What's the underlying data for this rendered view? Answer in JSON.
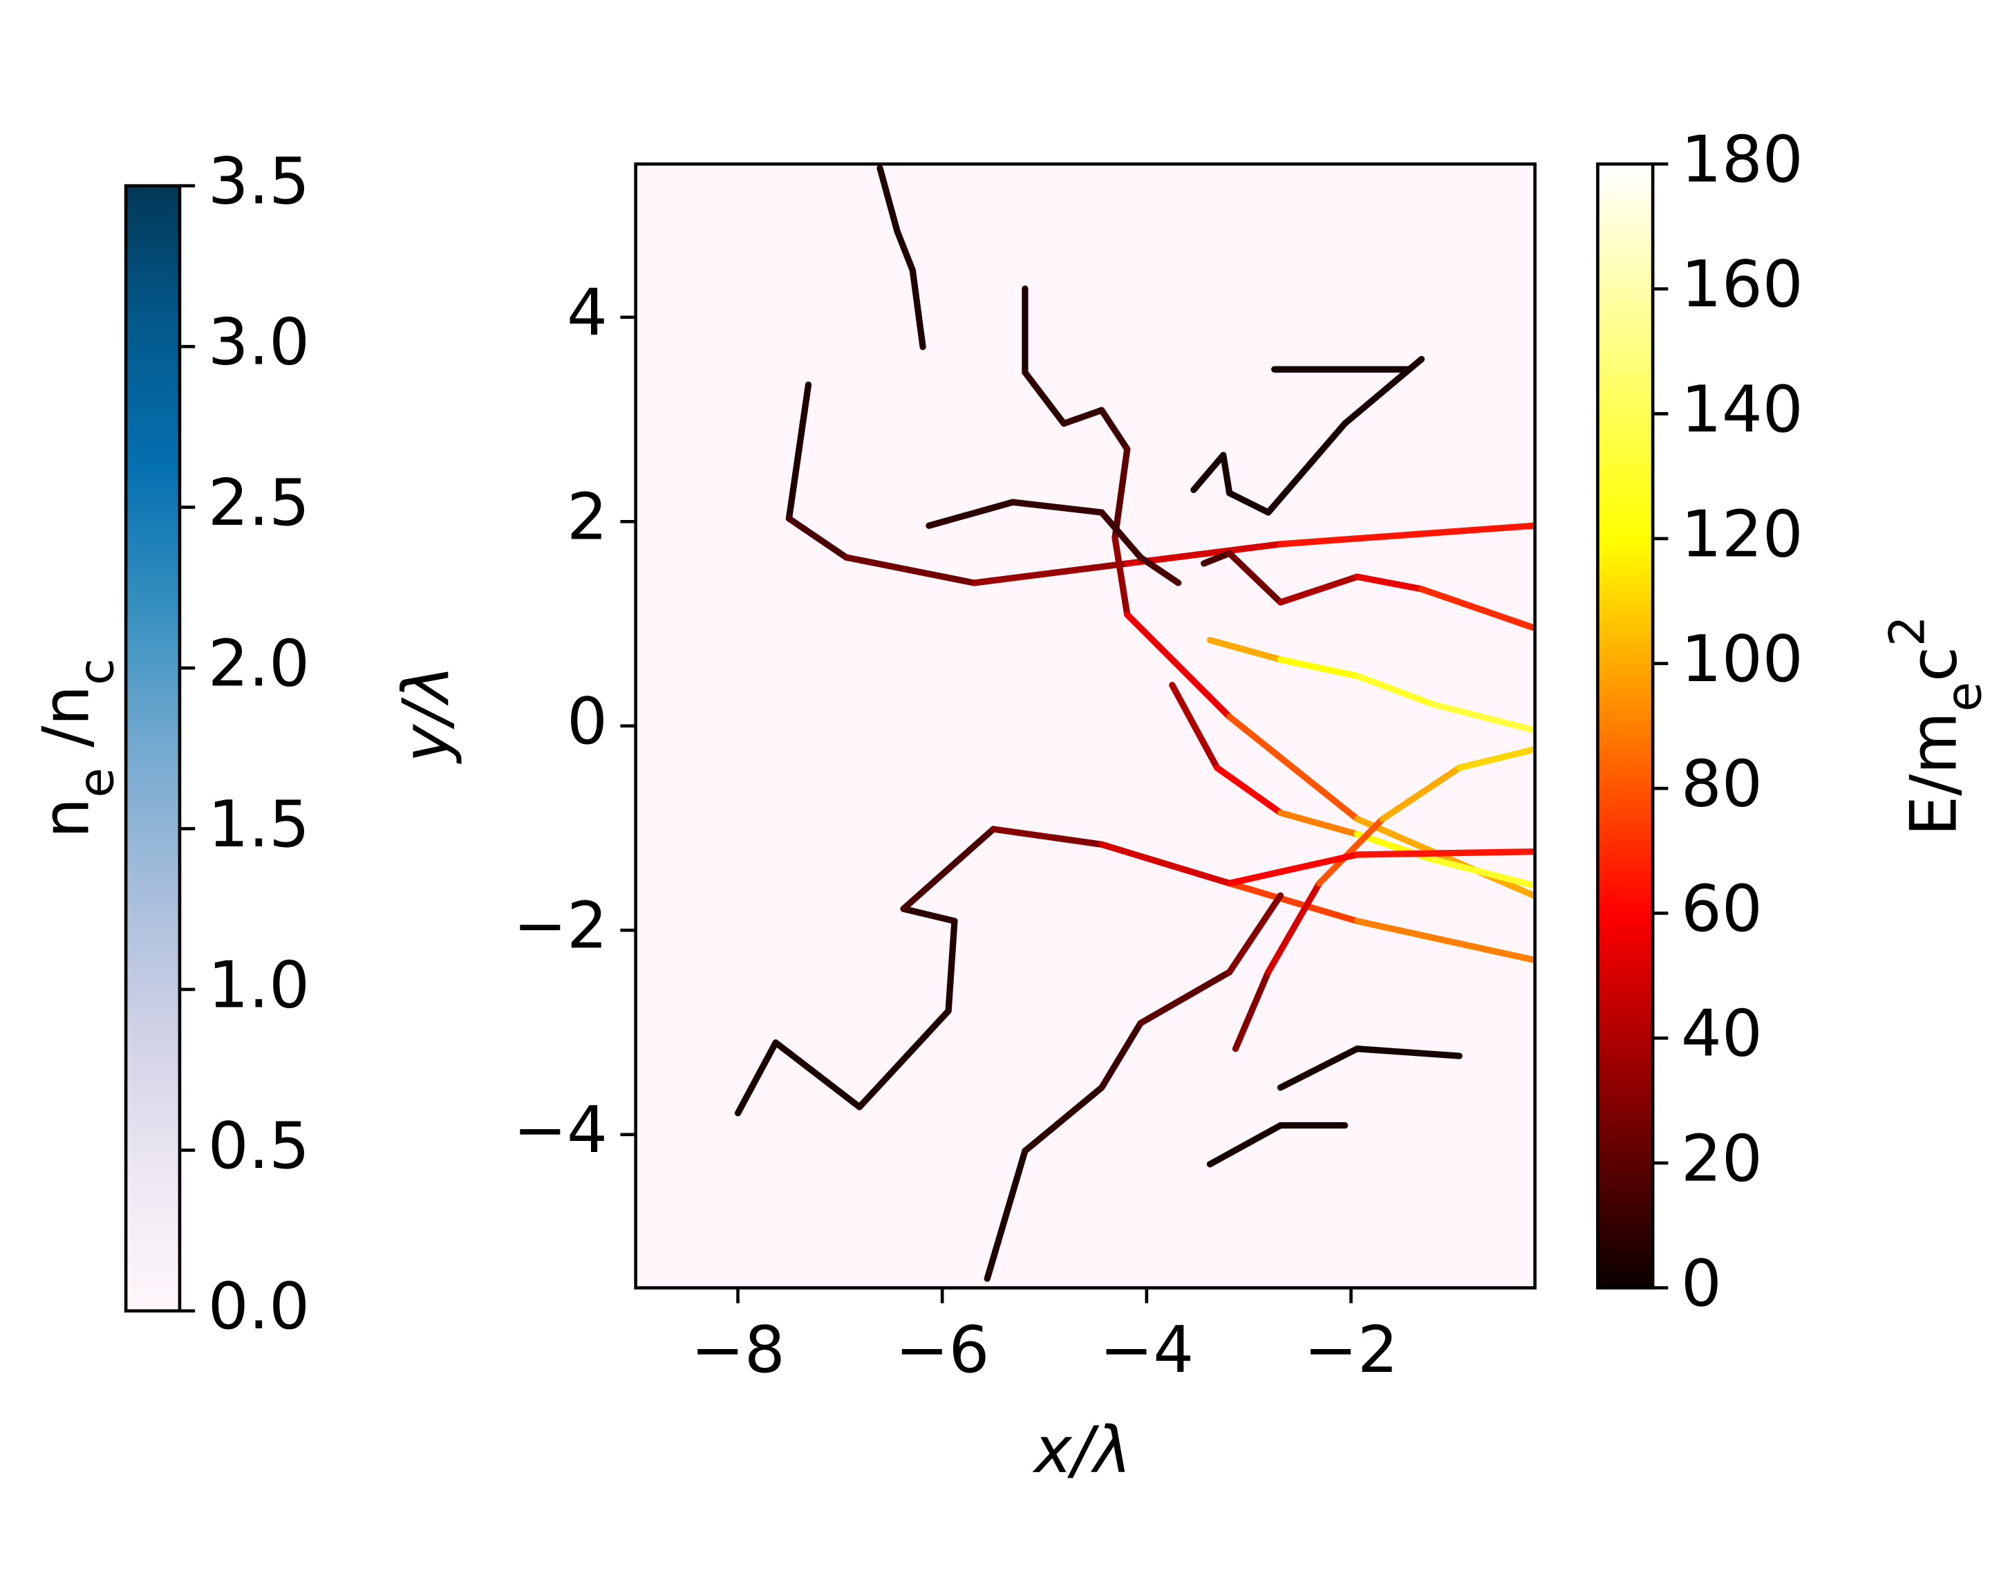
{
  "chart_data": {
    "type": "trajectory",
    "xlabel": "x/λ",
    "ylabel": "y/λ",
    "xlim": [
      -9,
      -0.2
    ],
    "ylim": [
      -5.5,
      5.5
    ],
    "xticks": [
      {
        "value": -8,
        "label": "−8"
      },
      {
        "value": -6,
        "label": "−6"
      },
      {
        "value": -4,
        "label": "−4"
      },
      {
        "value": -2,
        "label": "−2"
      }
    ],
    "yticks": [
      {
        "value": -4,
        "label": "−4"
      },
      {
        "value": -2,
        "label": "−2"
      },
      0,
      2,
      4
    ],
    "density_colorbar": {
      "label": [
        {
          "text": "n"
        },
        {
          "text": "e",
          "shift": "sub"
        },
        {
          "text": " /n"
        },
        {
          "text": "c",
          "shift": "sub"
        }
      ],
      "lim": [
        0,
        3.5
      ],
      "ticks": [
        {
          "value": 0,
          "label": "0.0"
        },
        {
          "value": 0.5,
          "label": "0.5"
        },
        {
          "value": 1,
          "label": "1.0"
        },
        {
          "value": 1.5,
          "label": "1.5"
        },
        {
          "value": 2,
          "label": "2.0"
        },
        {
          "value": 2.5,
          "label": "2.5"
        },
        {
          "value": 3,
          "label": "3.0"
        },
        {
          "value": 3.5,
          "label": "3.5"
        }
      ],
      "colors": [
        "#fff7fb",
        "#ece7f2",
        "#d0d1e6",
        "#a6bddb",
        "#74a9cf",
        "#3690c0",
        "#0570b0",
        "#045a8d",
        "#023858"
      ]
    },
    "energy_colorbar": {
      "label": [
        {
          "text": "E/m"
        },
        {
          "text": "e",
          "shift": "sub"
        },
        {
          "text": "c"
        },
        {
          "text": "2",
          "shift": "super"
        }
      ],
      "lim": [
        0,
        180
      ],
      "ticks": [
        0,
        20,
        40,
        60,
        80,
        100,
        120,
        140,
        160,
        180
      ],
      "colors": [
        "#0b0000",
        "#ff0000",
        "#ffff00",
        "#ffffff"
      ]
    },
    "series": [
      {
        "x": [
          -6.61,
          -6.44,
          -6.29,
          -6.19
        ],
        "y": [
          5.46,
          4.84,
          4.46,
          3.71
        ],
        "energy": [
          5,
          5,
          5,
          5
        ]
      },
      {
        "x": [
          -7.31,
          -7.5,
          -6.94,
          -5.69,
          -4.19,
          -2.69,
          -0.21
        ],
        "y": [
          3.34,
          2.03,
          1.65,
          1.4,
          1.59,
          1.78,
          1.96
        ],
        "energy": [
          5,
          5,
          15,
          25,
          35,
          50,
          65
        ]
      },
      {
        "x": [
          -5.19,
          -5.19,
          -4.81,
          -4.44,
          -4.19,
          -4.31,
          -4.19,
          -3.19,
          -1.94,
          -0.21
        ],
        "y": [
          4.28,
          3.46,
          2.96,
          3.09,
          2.71,
          1.84,
          1.09,
          0.09,
          -0.91,
          -1.66
        ],
        "energy": [
          3,
          5,
          8,
          10,
          12,
          20,
          35,
          55,
          80,
          100
        ]
      },
      {
        "x": [
          -6.13,
          -5.31,
          -4.44,
          -4.06,
          -3.69
        ],
        "y": [
          1.96,
          2.19,
          2.09,
          1.65,
          1.4
        ],
        "energy": [
          5,
          8,
          10,
          12,
          15
        ]
      },
      {
        "x": [
          -8,
          -7.63,
          -6.81,
          -5.94,
          -5.88,
          -6.38,
          -5.5,
          -4.44,
          -3.19,
          -1.94,
          -0.21
        ],
        "y": [
          -3.79,
          -3.1,
          -3.73,
          -2.79,
          -1.91,
          -1.79,
          -1.01,
          -1.16,
          -1.54,
          -1.91,
          -2.29
        ],
        "energy": [
          3,
          3,
          4,
          5,
          6,
          8,
          15,
          30,
          50,
          75,
          90
        ]
      },
      {
        "x": [
          -3.54,
          -3.25,
          -3.19,
          -2.81,
          -2.06,
          -1.31
        ],
        "y": [
          2.31,
          2.65,
          2.28,
          2.09,
          2.96,
          3.59
        ],
        "energy": [
          3,
          3,
          3,
          3,
          3,
          3
        ]
      },
      {
        "x": [
          -2.75,
          -1.44
        ],
        "y": [
          3.49,
          3.49
        ],
        "energy": [
          3,
          3
        ]
      },
      {
        "x": [
          -3.44,
          -3.19,
          -2.69,
          -1.94,
          -1.31,
          -0.21
        ],
        "y": [
          1.59,
          1.69,
          1.21,
          1.46,
          1.34,
          0.96
        ],
        "energy": [
          10,
          15,
          25,
          40,
          55,
          70
        ]
      },
      {
        "x": [
          -3.38,
          -2.69,
          -1.94,
          -1.19,
          -0.21
        ],
        "y": [
          0.84,
          0.65,
          0.49,
          0.21,
          -0.04
        ],
        "energy": [
          60,
          100,
          120,
          130,
          135
        ]
      },
      {
        "x": [
          -3.75,
          -3.31,
          -2.69,
          -1.94,
          -1.19,
          -0.21
        ],
        "y": [
          0.4,
          -0.41,
          -0.85,
          -1.06,
          -1.31,
          -1.56
        ],
        "energy": [
          20,
          40,
          60,
          90,
          120,
          130
        ]
      },
      {
        "x": [
          -3.13,
          -2.81,
          -2.31,
          -1.69,
          -0.94,
          -0.21
        ],
        "y": [
          -3.16,
          -2.41,
          -1.54,
          -0.91,
          -0.41,
          -0.23
        ],
        "energy": [
          15,
          30,
          50,
          80,
          100,
          110
        ]
      },
      {
        "x": [
          -5.56,
          -5.19,
          -4.44,
          -4.06,
          -3.19,
          -2.69
        ],
        "y": [
          -5.41,
          -4.16,
          -3.54,
          -2.91,
          -2.41,
          -1.66
        ],
        "energy": [
          3,
          5,
          8,
          12,
          20,
          30
        ]
      },
      {
        "x": [
          -3.38,
          -2.69,
          -2.06
        ],
        "y": [
          -4.29,
          -3.91,
          -3.91
        ],
        "energy": [
          3,
          3,
          3
        ]
      },
      {
        "x": [
          -2.69,
          -1.94,
          -0.94
        ],
        "y": [
          -3.54,
          -3.16,
          -3.23
        ],
        "energy": [
          3,
          3,
          3
        ]
      },
      {
        "x": [
          -3.19,
          -1.94,
          -0.21
        ],
        "y": [
          -1.54,
          -1.26,
          -1.23
        ],
        "energy": [
          50,
          60,
          65
        ]
      }
    ]
  }
}
